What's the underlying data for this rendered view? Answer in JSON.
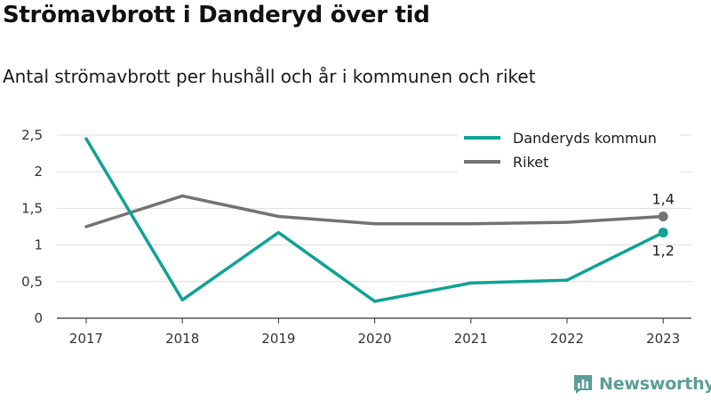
{
  "title": "Strömavbrott i Danderyd över tid",
  "subtitle": "Antal strömavbrott per hushåll och år i kommunen och riket",
  "brand": {
    "name": "Newsworthy",
    "icon": "bar-chart-logo-icon"
  },
  "colors": {
    "danderyd": "#0fa295",
    "riket": "#737373",
    "grid": "#dddddd",
    "brand": "#5b9e97"
  },
  "chart_data": {
    "type": "line",
    "x": [
      "2017",
      "2018",
      "2019",
      "2020",
      "2021",
      "2022",
      "2023"
    ],
    "yticks": [
      "0",
      "0,5",
      "1",
      "1,5",
      "2",
      "2,5"
    ],
    "ytick_values": [
      0,
      0.5,
      1,
      1.5,
      2,
      2.5
    ],
    "ylim": [
      0,
      2.5
    ],
    "grid": true,
    "legend_position": "top-right",
    "series": [
      {
        "name": "Danderyds kommun",
        "values": [
          2.45,
          0.25,
          1.17,
          0.23,
          0.48,
          0.52,
          1.17
        ],
        "end_label": "1,2"
      },
      {
        "name": "Riket",
        "values": [
          1.25,
          1.67,
          1.39,
          1.29,
          1.29,
          1.31,
          1.39
        ],
        "end_label": "1,4"
      }
    ]
  }
}
